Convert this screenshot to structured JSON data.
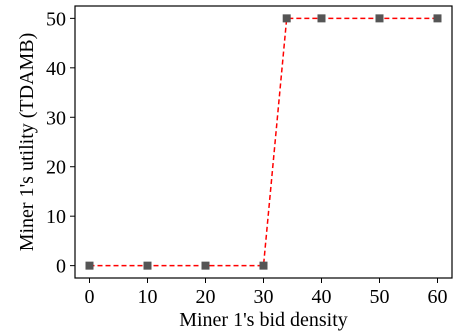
{
  "chart_data": {
    "type": "line",
    "title": "",
    "xlabel": "Miner 1's bid density",
    "ylabel": "Miner 1's utility (TDAMB)",
    "xlim": [
      -2.5,
      62.5
    ],
    "ylim": [
      -2.5,
      52.5
    ],
    "xticks": [
      0,
      10,
      20,
      30,
      40,
      50,
      60
    ],
    "yticks": [
      0,
      10,
      20,
      30,
      40,
      50
    ],
    "grid": false,
    "legend": "none",
    "series": [
      {
        "x": [
          0,
          10,
          20,
          30,
          34,
          40,
          50,
          60
        ],
        "y": [
          0,
          0,
          0,
          0,
          50,
          50,
          50,
          50
        ],
        "line_color": "#ff0000",
        "line_style": "dashed",
        "marker": "square",
        "marker_color": "#555555"
      }
    ]
  }
}
